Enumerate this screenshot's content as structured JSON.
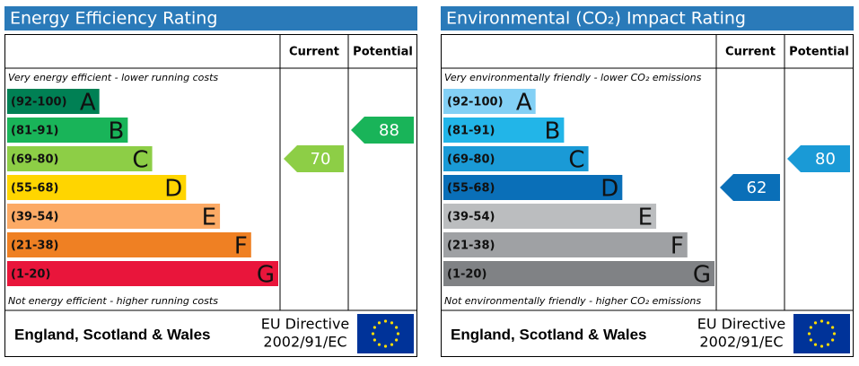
{
  "chart_data": [
    {
      "type": "epc",
      "title": "Energy Efficiency Rating",
      "header_current": "Current",
      "header_potential": "Potential",
      "top_note": "Very energy efficient - lower running costs",
      "bottom_note": "Not energy efficient - higher running costs",
      "categories": [
        "(92-100)",
        "(81-91)",
        "(69-80)",
        "(55-68)",
        "(39-54)",
        "(21-38)",
        "(1-20)"
      ],
      "letters": [
        "A",
        "B",
        "C",
        "D",
        "E",
        "F",
        "G"
      ],
      "colors": [
        "#008054",
        "#19b459",
        "#8dce46",
        "#ffd500",
        "#fcaa65",
        "#ef8023",
        "#e9153b"
      ],
      "current": 70,
      "potential": 88,
      "footer_region": "England, Scotland & Wales",
      "footer_directive": [
        "EU Directive",
        "2002/91/EC"
      ]
    },
    {
      "type": "epc",
      "title": "Environmental (CO₂) Impact Rating",
      "header_current": "Current",
      "header_potential": "Potential",
      "top_note": "Very environmentally friendly - lower CO₂ emissions",
      "bottom_note": "Not environmentally friendly - higher CO₂ emissions",
      "categories": [
        "(92-100)",
        "(81-91)",
        "(69-80)",
        "(55-68)",
        "(39-54)",
        "(21-38)",
        "(1-20)"
      ],
      "letters": [
        "A",
        "B",
        "C",
        "D",
        "E",
        "F",
        "G"
      ],
      "colors": [
        "#83d0f5",
        "#22b5e8",
        "#1a9ad6",
        "#0a6fb8",
        "#bbbdbf",
        "#9fa1a4",
        "#808285"
      ],
      "current": 62,
      "potential": 80,
      "footer_region": "England, Scotland & Wales",
      "footer_directive": [
        "EU Directive",
        "2002/91/EC"
      ]
    }
  ]
}
